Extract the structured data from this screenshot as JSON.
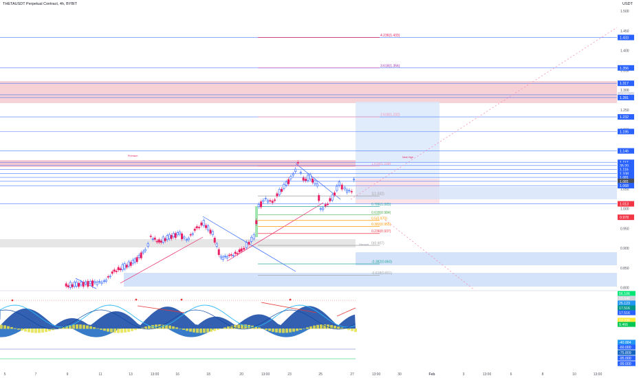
{
  "header": {
    "title": "THETAUSDT Perpetual Contract, 4h, BYBIT",
    "currency": "USDT"
  },
  "price_axis": {
    "ticks": [
      "1.500",
      "1.450",
      "1.400",
      "1.350",
      "1.300",
      "1.250",
      "1.200",
      "1.150",
      "1.100",
      "1.050",
      "1.000",
      "0.950",
      "0.900",
      "0.850",
      "0.800"
    ]
  },
  "price_tags": [
    {
      "value": 1.433,
      "label": "1.433",
      "color": "#2962ff"
    },
    {
      "value": 1.356,
      "label": "1.356",
      "color": "#2962ff"
    },
    {
      "value": 1.317,
      "label": "1.317",
      "color": "#2962ff"
    },
    {
      "value": 1.288,
      "label": "1.288",
      "color": "#d6dbe6",
      "dark": true
    },
    {
      "value": 1.281,
      "label": "1.281",
      "color": "#2962ff"
    },
    {
      "value": 1.232,
      "label": "1.232",
      "color": "#2962ff"
    },
    {
      "value": 1.195,
      "label": "1.195",
      "color": "#2962ff"
    },
    {
      "value": 1.146,
      "label": "1.146",
      "color": "#2962ff"
    },
    {
      "value": 1.117,
      "label": "1.117",
      "color": "#2962ff"
    },
    {
      "value": 1.109,
      "label": "35:20",
      "color": "#2962ff"
    },
    {
      "value": 1.099,
      "label": "1.116",
      "color": "#2962ff"
    },
    {
      "value": 1.089,
      "label": "1.108",
      "color": "#2962ff"
    },
    {
      "value": 1.079,
      "label": "1.081",
      "color": "#2962ff"
    },
    {
      "value": 1.069,
      "label": "1.081",
      "color": "#4a4f5c"
    },
    {
      "value": 1.058,
      "label": "1.068",
      "color": "#2962ff"
    },
    {
      "value": 1.012,
      "label": "1.013",
      "color": "#f23645"
    },
    {
      "value": 0.978,
      "label": "0.978",
      "color": "#f23645"
    }
  ],
  "fib_levels": [
    {
      "label": "4.236(1.433)",
      "value": 1.433,
      "color": "#e91e63"
    },
    {
      "label": "3.618(1.356)",
      "value": 1.356,
      "color": "#9c27b0"
    },
    {
      "label": "2.618(1.232)",
      "value": 1.232,
      "color": "#f48fb1"
    },
    {
      "label": "1.618(1.108)",
      "value": 1.108,
      "color": "#f48fb1"
    },
    {
      "label": "1(1.032)",
      "value": 1.032,
      "color": "#9e9e9e"
    },
    {
      "label": "0.786(1.005)",
      "value": 1.005,
      "color": "#26a69a"
    },
    {
      "label": "0.618(0.984)",
      "value": 0.984,
      "color": "#4caf50"
    },
    {
      "label": "0.5(0.970)",
      "value": 0.97,
      "color": "#ff9800"
    },
    {
      "label": "0.382(0.955)",
      "value": 0.955,
      "color": "#ff9800"
    },
    {
      "label": "0.236(0.937)",
      "value": 0.937,
      "color": "#f23645"
    },
    {
      "label": "0(0.907)",
      "value": 0.907,
      "color": "#9e9e9e"
    },
    {
      "label": "-0.382(0.860)",
      "value": 0.86,
      "color": "#26a69a"
    },
    {
      "label": "-0.618(0.831)",
      "value": 0.831,
      "color": "#9e9e9e"
    }
  ],
  "annotations": {
    "premium": "Premium",
    "discount": "Discount",
    "next_high": "Next High"
  },
  "oscillator_axis": {
    "tags": [
      {
        "label": "56.106",
        "color": "#00e676",
        "dark": true
      },
      {
        "label": "29.646",
        "color": "#d1d4dc",
        "dark": true
      },
      {
        "label": "25.123",
        "color": "#2196f3"
      },
      {
        "label": "17.516",
        "color": "#009688"
      },
      {
        "label": "17.516",
        "color": "#2962ff"
      },
      {
        "label": "12.030",
        "color": "#ffeb3b",
        "dark": true
      },
      {
        "label": "9.466",
        "color": "#00c853"
      },
      {
        "label": "0.000",
        "color": "#ffffff",
        "dark": true,
        "plain": true
      },
      {
        "label": "-40.884",
        "color": "#2196f3"
      },
      {
        "label": "-60.000",
        "color": "#2962ff"
      },
      {
        "label": "-75.809",
        "color": "#1565c0"
      },
      {
        "label": "-95.000",
        "color": "#2962ff"
      },
      {
        "label": "-99.000",
        "color": "#2962ff"
      }
    ]
  },
  "time_axis": {
    "labels": [
      "5",
      "7",
      "9",
      "11",
      "13",
      "13:00",
      "16",
      "18",
      "20",
      "13:00",
      "23",
      "25",
      "27",
      "13:00",
      "30",
      "Feb",
      "3",
      "13:00",
      "6",
      "8",
      "10",
      "13:00"
    ]
  },
  "colors": {
    "up": "#2962ff",
    "down": "#e91e63",
    "accent": "#2962ff",
    "premium_zone": "#f8c8cf",
    "discount_zone": "#c9dcf7"
  }
}
